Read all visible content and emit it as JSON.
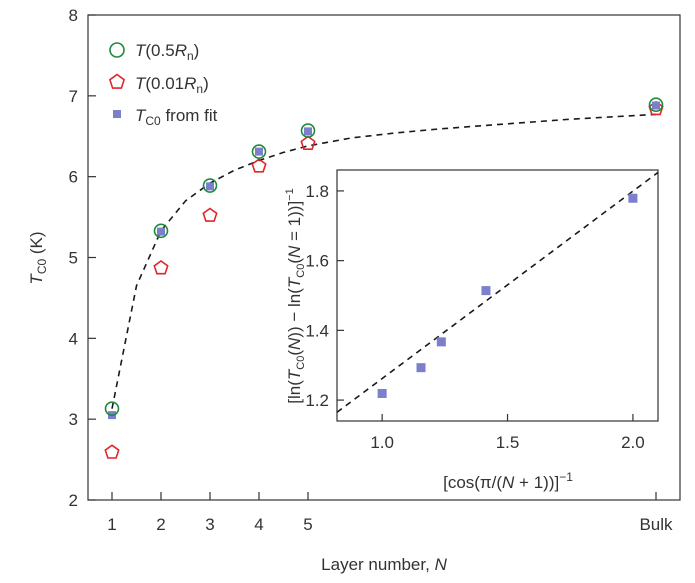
{
  "chart_data": [
    {
      "type": "scatter",
      "xlabel": {
        "pre": "Layer number, ",
        "italic": "N"
      },
      "ylabel": {
        "italic": "T",
        "sub": "C0",
        "post": " (K)"
      },
      "x_ticks": [
        "1",
        "2",
        "3",
        "4",
        "5",
        "Bulk"
      ],
      "y_ticks": [
        "2",
        "3",
        "4",
        "5",
        "6",
        "7",
        "8"
      ],
      "ylim": [
        2,
        8
      ],
      "grid": false,
      "legend_position": "top-left",
      "legend": [
        {
          "italic": "T",
          "text": "(0.5",
          "italic2": "R",
          "sub": "n",
          "tail": ")"
        },
        {
          "italic": "T",
          "text": "(0.01",
          "italic2": "R",
          "sub": "n",
          "tail": ")"
        },
        {
          "italic": "T",
          "sub": "C0",
          "tail": " from fit"
        }
      ],
      "colors": {
        "half_rn": "#1e8a3c",
        "hundredth_rn": "#e0262b",
        "fit": "#7b7fcc",
        "fit_line": "#1a1a1a"
      },
      "series": [
        {
          "marker": "circle",
          "x": [
            "1",
            "2",
            "3",
            "4",
            "5",
            "Bulk"
          ],
          "values": [
            3.13,
            5.33,
            5.89,
            6.31,
            6.57,
            6.89
          ]
        },
        {
          "marker": "pentagon",
          "x": [
            "1",
            "2",
            "3",
            "4",
            "5",
            "Bulk"
          ],
          "values": [
            2.59,
            4.87,
            5.52,
            6.13,
            6.41,
            6.84
          ]
        },
        {
          "marker": "square",
          "x": [
            "1",
            "2",
            "3",
            "4",
            "5",
            "Bulk"
          ],
          "values": [
            3.05,
            5.32,
            5.88,
            6.31,
            6.56,
            6.88
          ]
        }
      ],
      "fit_curve": {
        "style": "dashed",
        "x": [
          "1",
          "1.5",
          "2",
          "2.5",
          "3",
          "3.5",
          "4",
          "4.5",
          "5",
          "6",
          "7",
          "8",
          "9",
          "10",
          "11",
          "12",
          "Bulk"
        ],
        "values": [
          3.13,
          4.65,
          5.33,
          5.7,
          5.92,
          6.08,
          6.2,
          6.3,
          6.38,
          6.48,
          6.54,
          6.59,
          6.63,
          6.67,
          6.71,
          6.74,
          6.77
        ]
      }
    },
    {
      "type": "scatter",
      "xlabel": {
        "text": "[cos(π/(",
        "italic": "N",
        "tail": " + 1))]",
        "sup": "−1"
      },
      "ylabel": {
        "p1": "[ln(",
        "i1": "T",
        "s1": "C0",
        "p2": "(",
        "i2": "N",
        "p3": ")) − ln(",
        "i3": "T",
        "s2": "C0",
        "p4": "(",
        "i4": "N",
        "p5": " = 1))]",
        "sup": "−1"
      },
      "x_ticks": [
        "1.0",
        "1.5",
        "2.0"
      ],
      "y_ticks": [
        "1.2",
        "1.4",
        "1.6",
        "1.8"
      ],
      "xlim": [
        0.82,
        2.1
      ],
      "ylim": [
        1.14,
        1.86
      ],
      "grid": false,
      "points": [
        {
          "x": 1.0,
          "y": 1.219
        },
        {
          "x": 1.155,
          "y": 1.293
        },
        {
          "x": 1.236,
          "y": 1.367
        },
        {
          "x": 1.414,
          "y": 1.514
        },
        {
          "x": 2.0,
          "y": 1.779
        }
      ],
      "fit_line": {
        "style": "dashed",
        "x": [
          0.82,
          2.1
        ],
        "y": [
          1.165,
          1.853
        ]
      }
    }
  ]
}
